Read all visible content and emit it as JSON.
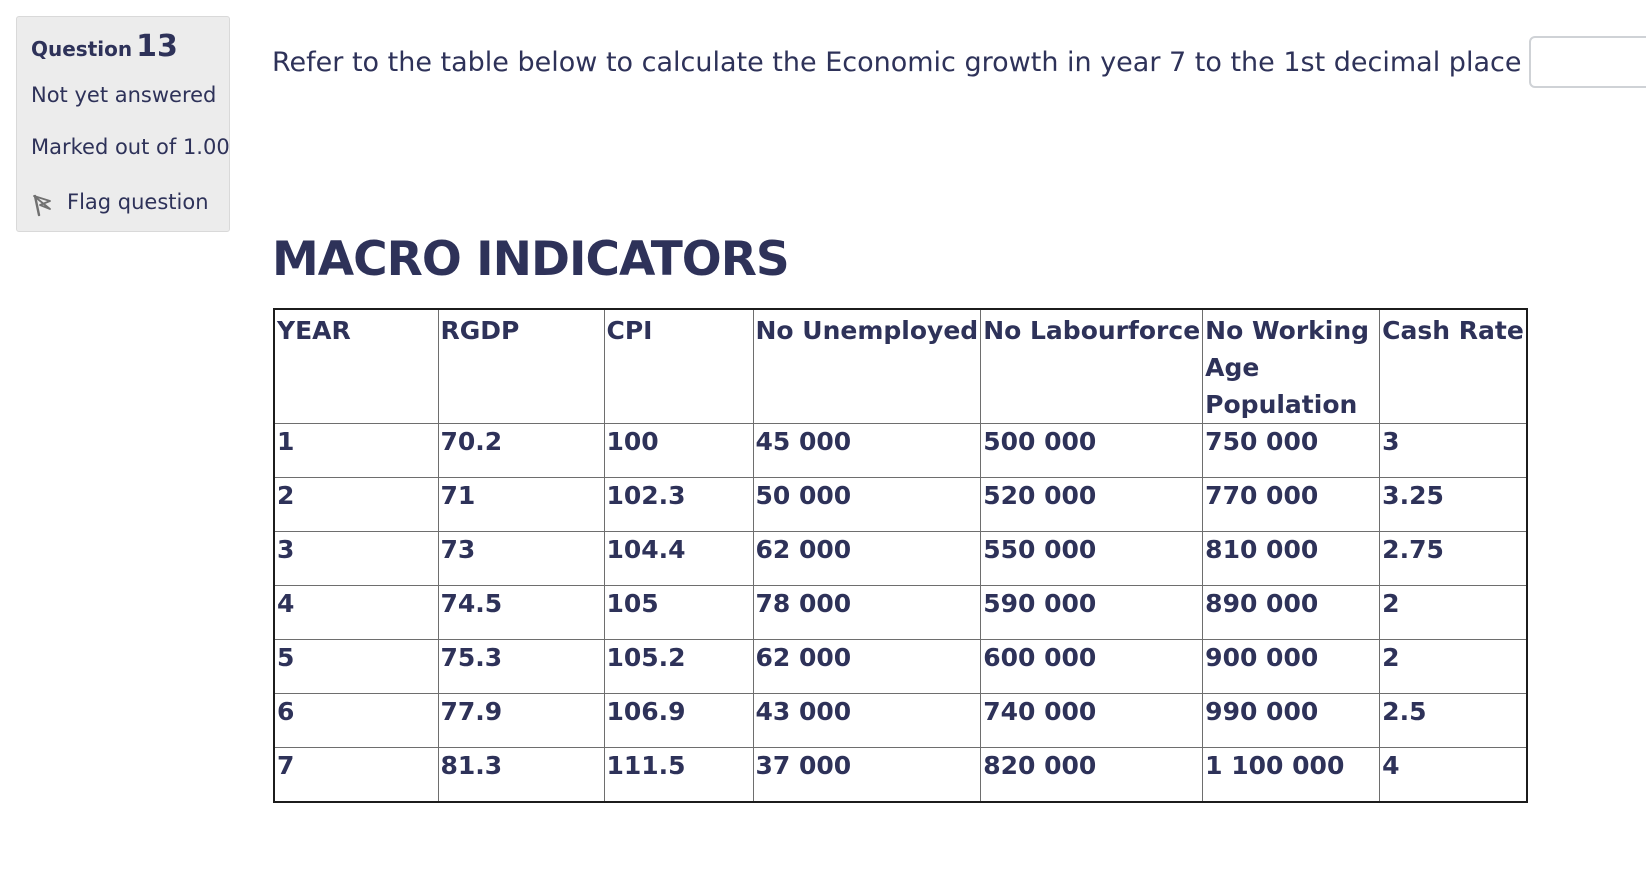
{
  "question": {
    "label": "Question",
    "number": "13",
    "state": "Not yet answered",
    "grade": "Marked out of 1.00",
    "flag_label": "Flag question",
    "flag_icon": "flag-icon"
  },
  "prompt": {
    "text": "Refer to the table below to calculate the Economic growth in year 7 to the 1st decimal place",
    "answer_value": "",
    "unit": "%"
  },
  "table": {
    "title": "MACRO INDICATORS",
    "headers": [
      "YEAR",
      "RGDP",
      "CPI",
      "No Unemployed",
      "No Labourforce",
      "No Working Age Population",
      "Cash Rate"
    ],
    "rows": [
      [
        "1",
        "70.2",
        "100",
        "45 000",
        "500 000",
        "750 000",
        "3"
      ],
      [
        "2",
        "71",
        "102.3",
        "50 000",
        "520 000",
        "770 000",
        "3.25"
      ],
      [
        "3",
        "73",
        "104.4",
        "62 000",
        "550 000",
        "810 000",
        "2.75"
      ],
      [
        "4",
        "74.5",
        "105",
        "78 000",
        "590 000",
        "890 000",
        "2"
      ],
      [
        "5",
        "75.3",
        "105.2",
        "62 000",
        "600 000",
        "900 000",
        "2"
      ],
      [
        "6",
        "77.9",
        "106.9",
        "43 000",
        "740 000",
        "990 000",
        "2.5"
      ],
      [
        "7",
        "81.3",
        "111.5",
        "37 000",
        "820 000",
        "1 100 000",
        "4"
      ]
    ]
  },
  "colors": {
    "text": "#2e3259",
    "panel_bg": "#ececec",
    "table_border": "#1c1c1c"
  }
}
